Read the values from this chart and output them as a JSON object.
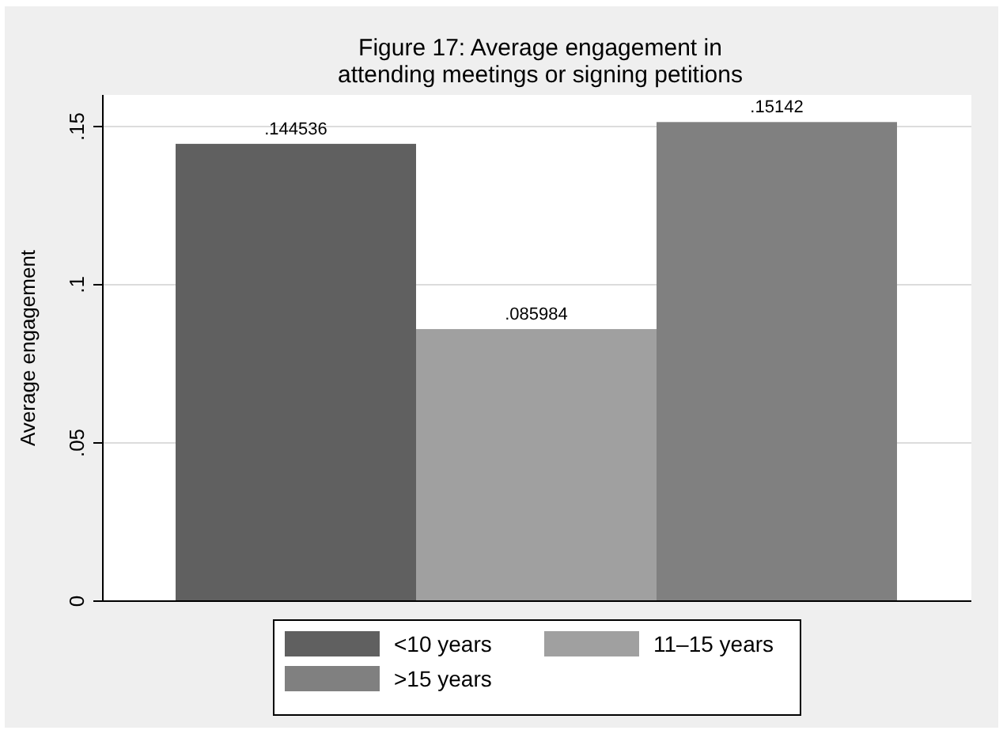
{
  "chart_data": {
    "type": "bar",
    "title": "Figure 17: Average engagement in\nattending meetings or signing petitions",
    "ylabel": "Average engagement",
    "categories": [
      null
    ],
    "series": [
      {
        "name": "<10 years",
        "color": "#606060",
        "values": [
          0.144536
        ],
        "value_labels": [
          ".144536"
        ]
      },
      {
        "name": "11–15 years",
        "color": "#a0a0a0",
        "values": [
          0.085984
        ],
        "value_labels": [
          ".085984"
        ]
      },
      {
        "name": ">15 years",
        "color": "#808080",
        "values": [
          0.15142
        ],
        "value_labels": [
          ".15142"
        ]
      }
    ],
    "ylim": [
      0,
      0.16
    ],
    "yticks": [
      {
        "value": 0,
        "label": "0"
      },
      {
        "value": 0.05,
        "label": ".05"
      },
      {
        "value": 0.1,
        "label": ".1"
      },
      {
        "value": 0.15,
        "label": ".15"
      }
    ],
    "grid": "y",
    "legend": "bottom"
  }
}
